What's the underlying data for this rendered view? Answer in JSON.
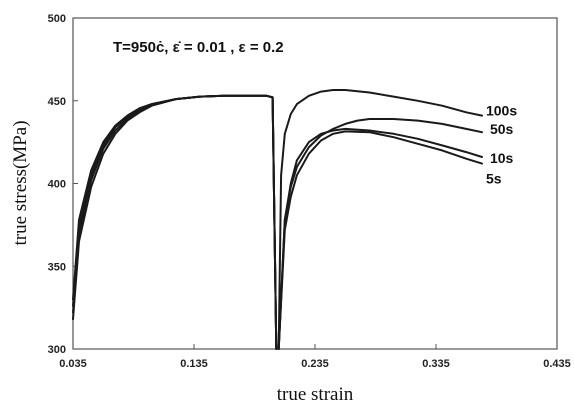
{
  "chart_data": {
    "type": "line",
    "annotation": "T=950ċ, ε̇ = 0.01 , ε = 0.2",
    "xlabel": "true strain",
    "ylabel": "true stress(MPa)",
    "xlim": [
      0.035,
      0.435
    ],
    "ylim": [
      300,
      500
    ],
    "x_ticks": [
      "0.035",
      "0.135",
      "0.235",
      "0.335",
      "0.435"
    ],
    "y_ticks": [
      "300",
      "350",
      "400",
      "450",
      "500"
    ],
    "grid": false,
    "legend": "inline labels at right end of curves",
    "series": [
      {
        "name": "100s",
        "segments": [
          {
            "x": [
              0.035,
              0.04,
              0.05,
              0.06,
              0.07,
              0.08,
              0.09,
              0.1,
              0.12,
              0.14,
              0.16,
              0.18,
              0.195,
              0.2,
              0.203
            ],
            "y": [
              318,
              365,
              398,
              418,
              430,
              438,
              443,
              447,
              451,
              452.5,
              453,
              453,
              453,
              452,
              300
            ]
          },
          {
            "x": [
              0.205,
              0.207,
              0.21,
              0.215,
              0.22,
              0.23,
              0.24,
              0.25,
              0.26,
              0.28,
              0.3,
              0.32,
              0.34,
              0.36,
              0.373
            ],
            "y": [
              300,
              405,
              430,
              442,
              448,
              453,
              455.5,
              456.5,
              456.5,
              455,
              452.5,
              450,
              447,
              443,
              441
            ]
          }
        ]
      },
      {
        "name": "50s",
        "segments": [
          {
            "x": [
              0.035,
              0.04,
              0.05,
              0.06,
              0.07,
              0.08,
              0.09,
              0.1,
              0.12,
              0.14,
              0.16,
              0.18,
              0.195,
              0.2,
              0.203
            ],
            "y": [
              322,
              370,
              402,
              421,
              432,
              439,
              444,
              447.5,
              451,
              452.5,
              453,
              453,
              453,
              452,
              300
            ]
          },
          {
            "x": [
              0.205,
              0.21,
              0.215,
              0.22,
              0.23,
              0.24,
              0.25,
              0.26,
              0.27,
              0.28,
              0.3,
              0.32,
              0.34,
              0.36,
              0.373
            ],
            "y": [
              300,
              378,
              398,
              410,
              422,
              429,
              433,
              436,
              438,
              439,
              439,
              438,
              436,
              433,
              431
            ]
          }
        ]
      },
      {
        "name": "10s",
        "segments": [
          {
            "x": [
              0.035,
              0.04,
              0.05,
              0.06,
              0.07,
              0.08,
              0.09,
              0.1,
              0.12,
              0.14,
              0.16,
              0.18,
              0.195,
              0.2,
              0.203
            ],
            "y": [
              326,
              374,
              405,
              423,
              434,
              440,
              445,
              448,
              451,
              452.5,
              453,
              453,
              453,
              452,
              300
            ]
          },
          {
            "x": [
              0.205,
              0.21,
              0.215,
              0.22,
              0.23,
              0.24,
              0.25,
              0.26,
              0.28,
              0.3,
              0.32,
              0.34,
              0.36,
              0.373
            ],
            "y": [
              300,
              378,
              400,
              414,
              425,
              430,
              432,
              433,
              432,
              430,
              427,
              423,
              419,
              416
            ]
          }
        ]
      },
      {
        "name": "5s",
        "segments": [
          {
            "x": [
              0.035,
              0.04,
              0.05,
              0.06,
              0.07,
              0.08,
              0.09,
              0.1,
              0.12,
              0.14,
              0.16,
              0.18,
              0.195,
              0.2,
              0.203
            ],
            "y": [
              330,
              378,
              408,
              425,
              435,
              441,
              445.5,
              448,
              451,
              452.5,
              453,
              453,
              453,
              452,
              300
            ]
          },
          {
            "x": [
              0.205,
              0.21,
              0.215,
              0.22,
              0.23,
              0.24,
              0.25,
              0.26,
              0.28,
              0.3,
              0.32,
              0.34,
              0.36,
              0.373
            ],
            "y": [
              300,
              372,
              392,
              405,
              418,
              426,
              430,
              431.5,
              431,
              428,
              424,
              420,
              415,
              412
            ]
          }
        ]
      }
    ],
    "series_labels": [
      "100s",
      "50s",
      "10s",
      "5s"
    ]
  }
}
